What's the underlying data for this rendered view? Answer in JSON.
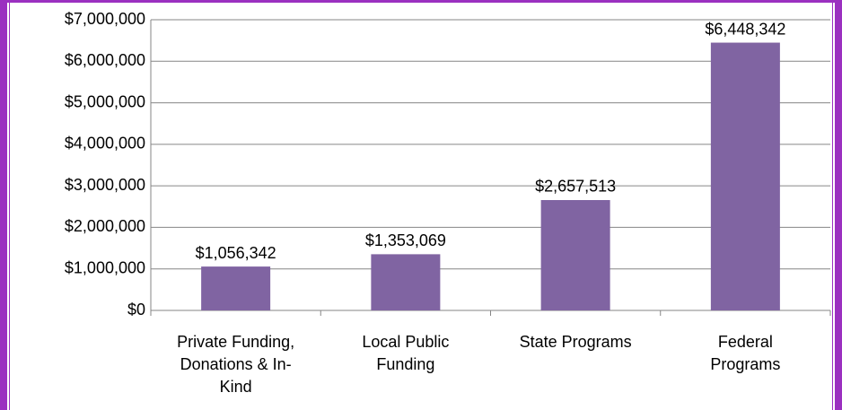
{
  "chart_data": {
    "type": "bar",
    "categories": [
      "Private Funding, Donations & In-Kind",
      "Local Public Funding",
      "State Programs",
      "Federal Programs"
    ],
    "values": [
      1056342,
      1353069,
      2657513,
      6448342
    ],
    "value_labels": [
      "$1,056,342",
      "$1,353,069",
      "$2,657,513",
      "$6,448,342"
    ],
    "color": "#8064a2",
    "ylim": [
      0,
      7000000
    ],
    "yticks": [
      {
        "value": 0,
        "label": "$0"
      },
      {
        "value": 1000000,
        "label": "$1,000,000"
      },
      {
        "value": 2000000,
        "label": "$2,000,000"
      },
      {
        "value": 3000000,
        "label": "$3,000,000"
      },
      {
        "value": 4000000,
        "label": "$4,000,000"
      },
      {
        "value": 5000000,
        "label": "$5,000,000"
      },
      {
        "value": 6000000,
        "label": "$6,000,000"
      },
      {
        "value": 7000000,
        "label": "$7,000,000"
      }
    ],
    "grid": true
  }
}
